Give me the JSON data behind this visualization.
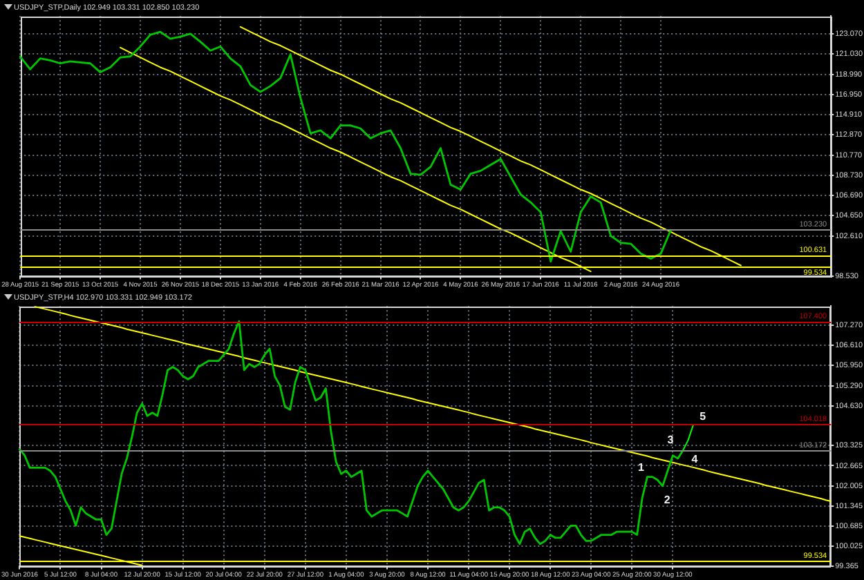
{
  "chart_data": [
    {
      "type": "line",
      "title": "USDJPY_STP,Daily 102.949 103.331 102.850 103.230",
      "categories": [
        "28 Aug 2015",
        null,
        null,
        null,
        "21 Sep 2015",
        null,
        null,
        null,
        "13 Oct 2015",
        null,
        null,
        null,
        "4 Nov 2015",
        null,
        null,
        null,
        "26 Nov 2015",
        null,
        null,
        null,
        "18 Dec 2015",
        null,
        null,
        null,
        "13 Jan 2016",
        null,
        null,
        null,
        "4 Feb 2016",
        null,
        null,
        null,
        "26 Feb 2016",
        null,
        null,
        null,
        "21 Mar 2016",
        null,
        null,
        null,
        "12 Apr 2016",
        null,
        null,
        null,
        "4 May 2016",
        null,
        null,
        null,
        "26 May 2016",
        null,
        null,
        null,
        "17 Jun 2016",
        null,
        null,
        null,
        "11 Jul 2016",
        null,
        null,
        null,
        "2 Aug 2016",
        null,
        null,
        null,
        "24 Aug 2016",
        null,
        null,
        null,
        null,
        null,
        null,
        null,
        null,
        null,
        null,
        null,
        null,
        null,
        null,
        null,
        null,
        null
      ],
      "series": [
        {
          "color": "#00c800",
          "values": [
            120.8,
            119.5,
            120.6,
            120.4,
            120.1,
            120.3,
            120.2,
            120.1,
            119.2,
            119.7,
            120.7,
            120.8,
            121.8,
            123.0,
            123.3,
            122.6,
            122.8,
            123.1,
            122.3,
            121.4,
            121.8,
            120.6,
            119.8,
            117.9,
            117.2,
            117.8,
            118.6,
            121.0,
            116.6,
            113.0,
            113.3,
            112.5,
            113.8,
            113.8,
            113.5,
            112.5,
            113.0,
            113.3,
            111.5,
            108.9,
            108.8,
            109.6,
            111.5,
            107.8,
            107.3,
            108.9,
            109.2,
            109.8,
            110.4,
            108.6,
            106.8,
            106.0,
            105.0,
            100.0,
            103.1,
            101.0,
            105.0,
            106.6,
            106.0,
            102.6,
            101.9,
            101.8,
            100.8,
            100.3,
            100.8,
            103.2,
            null,
            null,
            null,
            null,
            null,
            null,
            null,
            null,
            null,
            null,
            null,
            null,
            null,
            null,
            null,
            null
          ]
        },
        {
          "color": "#ffff00",
          "values": [
            null,
            null,
            null,
            null,
            null,
            null,
            null,
            null,
            null,
            null,
            null,
            null,
            null,
            null,
            null,
            null,
            null,
            null,
            null,
            null,
            null,
            null,
            123.8,
            123.3,
            122.8,
            122.3,
            121.9,
            121.4,
            120.9,
            120.4,
            119.9,
            119.4,
            119.0,
            118.5,
            118.0,
            117.5,
            117.0,
            116.5,
            116.1,
            115.6,
            115.1,
            114.6,
            114.1,
            113.6,
            113.2,
            112.7,
            112.2,
            111.7,
            111.2,
            110.7,
            110.2,
            109.8,
            109.3,
            108.8,
            108.3,
            107.8,
            107.3,
            106.9,
            106.4,
            105.9,
            105.4,
            104.9,
            104.4,
            104.0,
            103.5,
            103.0,
            102.5,
            102.0,
            101.5,
            101.1,
            100.6,
            100.1,
            99.6,
            null,
            null,
            null,
            null,
            null,
            null,
            null,
            null,
            null
          ]
        },
        {
          "color": "#ffff00",
          "values": [
            null,
            null,
            null,
            null,
            null,
            null,
            null,
            null,
            null,
            null,
            121.7,
            121.2,
            120.7,
            120.2,
            119.7,
            119.3,
            118.8,
            118.3,
            117.8,
            117.3,
            116.8,
            116.4,
            115.9,
            115.4,
            114.9,
            114.4,
            114.0,
            113.5,
            113.0,
            112.5,
            112.0,
            111.5,
            111.1,
            110.6,
            110.1,
            109.6,
            109.1,
            108.6,
            108.2,
            107.7,
            107.2,
            106.7,
            106.2,
            105.7,
            105.3,
            104.8,
            104.3,
            103.8,
            103.3,
            102.9,
            102.4,
            101.9,
            101.4,
            100.9,
            100.4,
            100.0,
            99.5,
            99.0,
            null,
            null,
            null,
            null,
            null,
            null,
            null,
            null,
            null,
            null,
            null,
            null,
            null,
            null,
            null,
            null,
            null,
            null,
            null,
            null,
            null,
            null,
            null,
            null
          ]
        }
      ],
      "ylim": [
        98.48,
        124.9
      ],
      "yticks": [
        {
          "value": 98.53,
          "label": "98.530"
        },
        {
          "value": 102.61,
          "label": "102.610"
        },
        {
          "value": 104.65,
          "label": "104.650"
        },
        {
          "value": 106.69,
          "label": "106.690"
        },
        {
          "value": 108.73,
          "label": "108.730"
        },
        {
          "value": 110.77,
          "label": "110.770"
        },
        {
          "value": 112.87,
          "label": "112.870"
        },
        {
          "value": 114.91,
          "label": "114.910"
        },
        {
          "value": 116.95,
          "label": "116.950"
        },
        {
          "value": 118.99,
          "label": "118.990"
        },
        {
          "value": 121.03,
          "label": "121.030"
        },
        {
          "value": 123.07,
          "label": "123.070"
        }
      ],
      "ref_lines": [
        {
          "axis": "y",
          "value": 103.23,
          "label": "103.230",
          "color": "#8c8c8c"
        },
        {
          "axis": "y",
          "value": 100.631,
          "label": "100.631",
          "color": "#ffff00"
        },
        {
          "axis": "y",
          "value": 99.534,
          "label": "99.534",
          "color": "#ffff00"
        }
      ],
      "grid": true
    },
    {
      "type": "line",
      "title": "USDJPY_STP,H4 102.970 103.331 102.949 103.172",
      "categories": [
        "30 Jun 2016",
        null,
        null,
        null,
        null,
        null,
        null,
        null,
        "5 Jul 12:00",
        null,
        null,
        null,
        null,
        null,
        null,
        null,
        "8 Jul 04:00",
        null,
        null,
        null,
        null,
        null,
        null,
        null,
        "12 Jul 20:00",
        null,
        null,
        null,
        null,
        null,
        null,
        null,
        "15 Jul 12:00",
        null,
        null,
        null,
        null,
        null,
        null,
        null,
        "20 Jul 04:00",
        null,
        null,
        null,
        null,
        null,
        null,
        null,
        "22 Jul 20:00",
        null,
        null,
        null,
        null,
        null,
        null,
        null,
        "27 Jul 12:00",
        null,
        null,
        null,
        null,
        null,
        null,
        null,
        "1 Aug 04:00",
        null,
        null,
        null,
        null,
        null,
        null,
        null,
        "3 Aug 20:00",
        null,
        null,
        null,
        null,
        null,
        null,
        null,
        "8 Aug 12:00",
        null,
        null,
        null,
        null,
        null,
        null,
        null,
        "11 Aug 04:00",
        null,
        null,
        null,
        null,
        null,
        null,
        null,
        "15 Aug 20:00",
        null,
        null,
        null,
        null,
        null,
        null,
        null,
        "18 Aug 12:00",
        null,
        null,
        null,
        null,
        null,
        null,
        null,
        "23 Aug 04:00",
        null,
        null,
        null,
        null,
        null,
        null,
        null,
        "25 Aug 20:00",
        null,
        null,
        null,
        null,
        null,
        null,
        null,
        "30 Aug 12:00",
        null,
        null,
        null,
        null,
        null,
        null,
        null,
        null,
        null,
        null,
        null,
        null,
        null,
        null,
        null,
        null,
        null,
        null,
        null,
        null,
        null,
        null,
        null,
        null,
        null,
        null,
        null,
        null,
        null,
        null,
        null
      ],
      "series": [
        {
          "color": "#00c800",
          "values": [
            103.2,
            103.0,
            102.6,
            102.6,
            102.6,
            102.6,
            102.5,
            102.3,
            101.9,
            101.5,
            101.2,
            100.7,
            101.3,
            101.1,
            101.0,
            100.9,
            100.9,
            100.4,
            100.6,
            101.5,
            102.4,
            102.9,
            103.6,
            104.4,
            104.7,
            104.3,
            104.4,
            104.3,
            105.0,
            105.8,
            105.9,
            105.8,
            105.6,
            105.5,
            105.6,
            105.9,
            106.0,
            106.1,
            106.1,
            106.1,
            106.3,
            106.5,
            107.0,
            107.4,
            105.8,
            106.0,
            105.9,
            106.0,
            106.3,
            106.5,
            105.6,
            105.3,
            104.6,
            104.5,
            105.4,
            105.9,
            105.8,
            105.3,
            104.8,
            104.9,
            105.2,
            103.8,
            102.8,
            102.4,
            102.5,
            102.3,
            102.4,
            102.5,
            101.2,
            101.0,
            101.1,
            101.2,
            101.2,
            101.2,
            101.2,
            101.1,
            101.0,
            101.5,
            102.0,
            102.3,
            102.5,
            102.3,
            102.1,
            101.9,
            101.6,
            101.3,
            101.2,
            101.3,
            101.5,
            101.8,
            102.1,
            102.2,
            101.2,
            101.3,
            101.3,
            101.2,
            101.0,
            100.4,
            100.1,
            100.5,
            100.6,
            100.3,
            100.1,
            100.2,
            100.4,
            100.3,
            100.3,
            100.5,
            100.7,
            100.7,
            100.4,
            100.2,
            100.2,
            100.3,
            100.4,
            100.4,
            100.4,
            100.5,
            100.5,
            100.5,
            100.5,
            100.4,
            101.6,
            102.3,
            102.3,
            102.2,
            102.0,
            102.5,
            103.0,
            102.9,
            103.17,
            null,
            null,
            null,
            null,
            null,
            null,
            null,
            null,
            null,
            null,
            null,
            null,
            null,
            null,
            null,
            null,
            null,
            null,
            null,
            null,
            null,
            null,
            null,
            null,
            null,
            null,
            null,
            null,
            null
          ]
        },
        {
          "color": "#00ff00",
          "values": [
            null,
            null,
            null,
            null,
            null,
            null,
            null,
            null,
            null,
            null,
            null,
            null,
            null,
            null,
            null,
            null,
            null,
            null,
            null,
            null,
            null,
            null,
            null,
            null,
            null,
            null,
            null,
            null,
            null,
            null,
            null,
            null,
            null,
            null,
            null,
            null,
            null,
            null,
            null,
            null,
            null,
            null,
            null,
            null,
            null,
            null,
            null,
            null,
            null,
            null,
            null,
            null,
            null,
            null,
            null,
            null,
            null,
            null,
            null,
            null,
            null,
            null,
            null,
            null,
            null,
            null,
            null,
            null,
            null,
            null,
            null,
            null,
            null,
            null,
            null,
            null,
            null,
            null,
            null,
            null,
            null,
            null,
            null,
            null,
            null,
            null,
            null,
            null,
            null,
            null,
            null,
            null,
            null,
            null,
            null,
            null,
            null,
            null,
            null,
            null,
            null,
            null,
            null,
            null,
            null,
            null,
            null,
            null,
            null,
            null,
            null,
            null,
            null,
            null,
            null,
            null,
            null,
            null,
            null,
            null,
            null,
            null,
            null,
            null,
            null,
            null,
            null,
            null,
            null,
            null,
            103.17,
            103.5,
            104.0,
            null,
            null,
            null,
            null,
            null,
            null,
            null,
            null,
            null,
            null,
            null,
            null,
            null,
            null,
            null,
            null,
            null,
            null,
            null,
            null,
            null,
            null,
            null,
            null,
            null,
            null,
            null
          ]
        },
        {
          "color": "#ffff00",
          "values": [
            null,
            null,
            null,
            107.88,
            107.84,
            107.8,
            107.76,
            107.72,
            107.68,
            107.64,
            107.59,
            107.55,
            107.51,
            107.47,
            107.43,
            107.39,
            107.35,
            107.31,
            107.27,
            107.23,
            107.19,
            107.14,
            107.1,
            107.06,
            107.02,
            106.98,
            106.94,
            106.9,
            106.86,
            106.82,
            106.78,
            106.74,
            106.69,
            106.65,
            106.61,
            106.57,
            106.53,
            106.49,
            106.45,
            106.41,
            106.37,
            106.33,
            106.29,
            106.25,
            106.2,
            106.16,
            106.12,
            106.08,
            106.04,
            106.0,
            105.96,
            105.92,
            105.88,
            105.84,
            105.8,
            105.75,
            105.71,
            105.67,
            105.63,
            105.59,
            105.55,
            105.51,
            105.47,
            105.43,
            105.39,
            105.35,
            105.31,
            105.26,
            105.22,
            105.18,
            105.14,
            105.1,
            105.06,
            105.02,
            104.98,
            104.94,
            104.9,
            104.86,
            104.81,
            104.77,
            104.73,
            104.69,
            104.65,
            104.61,
            104.57,
            104.53,
            104.49,
            104.45,
            104.41,
            104.36,
            104.32,
            104.28,
            104.24,
            104.2,
            104.16,
            104.12,
            104.08,
            104.04,
            104.0,
            103.96,
            103.92,
            103.87,
            103.83,
            103.79,
            103.75,
            103.71,
            103.67,
            103.63,
            103.59,
            103.55,
            103.51,
            103.47,
            103.42,
            103.38,
            103.34,
            103.3,
            103.26,
            103.22,
            103.18,
            103.14,
            103.1,
            103.06,
            103.02,
            102.98,
            102.93,
            102.89,
            102.85,
            102.81,
            102.77,
            102.73,
            102.69,
            102.65,
            102.61,
            102.57,
            102.53,
            102.48,
            102.44,
            102.4,
            102.36,
            102.32,
            102.28,
            102.24,
            102.2,
            102.16,
            102.12,
            102.08,
            102.03,
            101.99,
            101.95,
            101.91,
            101.87,
            101.83,
            101.79,
            101.75,
            101.71,
            101.67,
            101.63,
            101.59,
            101.54,
            101.5
          ]
        },
        {
          "color": "#ffff00",
          "values": [
            100.36,
            100.32,
            100.28,
            100.24,
            100.2,
            100.16,
            100.12,
            100.08,
            100.04,
            100.0,
            99.96,
            99.92,
            99.88,
            99.84,
            99.8,
            99.76,
            99.72,
            99.68,
            99.64,
            99.6,
            99.56,
            99.52,
            99.48,
            99.44,
            99.4,
            null,
            null,
            null,
            null,
            null,
            null,
            null,
            null,
            null,
            null,
            null,
            null,
            null,
            null,
            null,
            null,
            null,
            null,
            null,
            null,
            null,
            null,
            null,
            null,
            null,
            null,
            null,
            null,
            null,
            null,
            null,
            null,
            null,
            null,
            null,
            null,
            null,
            null,
            null,
            null,
            null,
            null,
            null,
            null,
            null,
            null,
            null,
            null,
            null,
            null,
            null,
            null,
            null,
            null,
            null,
            null,
            null,
            null,
            null,
            null,
            null,
            null,
            null,
            null,
            null,
            null,
            null,
            null,
            null,
            null,
            null,
            null,
            null,
            null,
            null,
            null,
            null,
            null,
            null,
            null,
            null,
            null,
            null,
            null,
            null,
            null,
            null,
            null,
            null,
            null,
            null,
            null,
            null,
            null,
            null,
            null,
            null,
            null,
            null,
            null,
            null,
            null,
            null,
            null,
            null,
            null,
            null,
            null,
            null,
            null,
            null,
            null,
            null,
            null,
            null,
            null,
            null,
            null,
            null,
            null,
            null,
            null,
            null,
            null,
            null,
            null,
            null,
            null,
            null,
            null,
            null,
            null,
            null,
            null,
            null
          ]
        }
      ],
      "ylim": [
        99.36,
        107.9
      ],
      "yticks": [
        {
          "value": 99.365,
          "label": "99.365"
        },
        {
          "value": 100.025,
          "label": "100.025"
        },
        {
          "value": 100.685,
          "label": "100.685"
        },
        {
          "value": 101.345,
          "label": "101.345"
        },
        {
          "value": 102.005,
          "label": "102.005"
        },
        {
          "value": 102.665,
          "label": "102.665"
        },
        {
          "value": 103.325,
          "label": "103.325"
        },
        {
          "value": 104.63,
          "label": "104.630"
        },
        {
          "value": 105.29,
          "label": "105.290"
        },
        {
          "value": 105.95,
          "label": "105.950"
        },
        {
          "value": 106.61,
          "label": "106.610"
        },
        {
          "value": 107.27,
          "label": "107.270"
        }
      ],
      "ref_lines": [
        {
          "axis": "y",
          "value": 107.4,
          "label": "107.400",
          "color": "#c80000"
        },
        {
          "axis": "y",
          "value": 104.018,
          "label": "104.018",
          "color": "#c80000"
        },
        {
          "axis": "y",
          "value": 103.172,
          "label": "103.172",
          "color": "#8c8c8c"
        },
        {
          "axis": "y",
          "value": 99.534,
          "label": "99.534",
          "color": "#ffff00"
        }
      ],
      "annotations": [
        "1",
        "2",
        "3",
        "4",
        "5"
      ],
      "grid": true
    }
  ]
}
